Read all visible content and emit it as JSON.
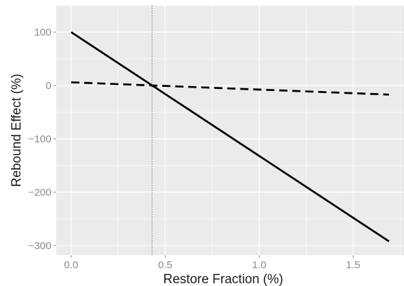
{
  "chart_data": {
    "type": "line",
    "xlabel": "Restore Fraction (%)",
    "ylabel": "Rebound Effect (%)",
    "xlim": [
      -0.08,
      1.77
    ],
    "ylim": [
      -318,
      150
    ],
    "x_ticks": [
      0.0,
      0.5,
      1.0,
      1.5
    ],
    "x_tick_labels": [
      "0.0",
      "0.5",
      "1.0",
      "1.5"
    ],
    "y_ticks": [
      100,
      0,
      -100,
      -200,
      -300
    ],
    "y_tick_labels": [
      "100",
      "0",
      "−100",
      "−200",
      "−300"
    ],
    "grid": true,
    "background": "#ebebeb",
    "grid_color": "#ffffff",
    "series": [
      {
        "style": "solid",
        "color": "#000000",
        "x": [
          0.0,
          1.69
        ],
        "y": [
          100,
          -292
        ]
      },
      {
        "style": "dashed",
        "color": "#000000",
        "x": [
          0.0,
          1.69
        ],
        "y": [
          6,
          -17
        ]
      }
    ],
    "reference_lines": [
      {
        "orientation": "vertical",
        "style": "dotted",
        "x": 0.43
      }
    ]
  }
}
